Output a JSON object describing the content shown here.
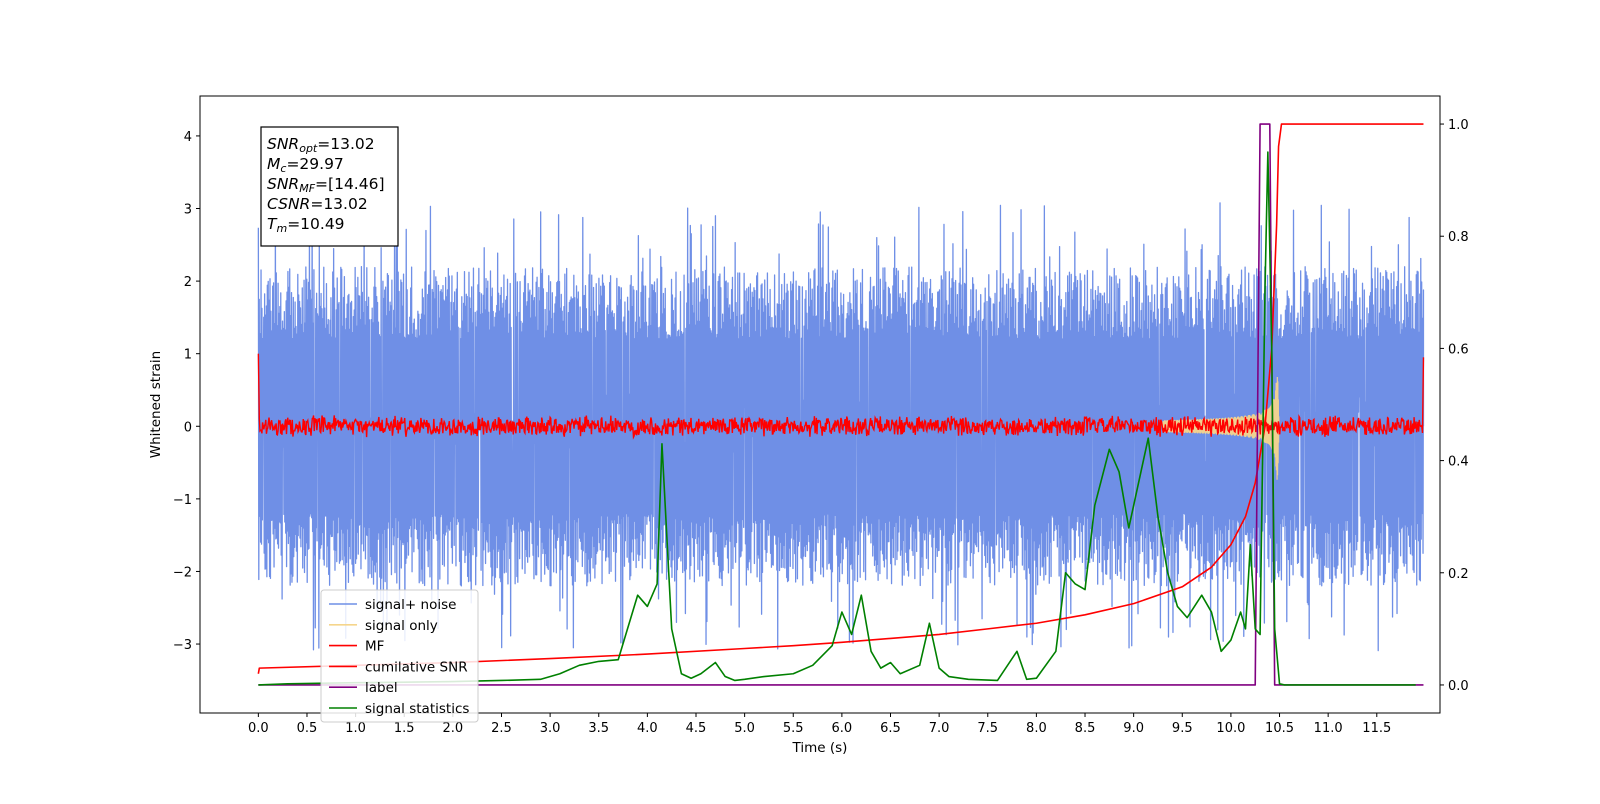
{
  "chart_data": {
    "type": "line",
    "title": "",
    "xlabel": "Time (s)",
    "ylabel": "Whitened strain",
    "ylabel_right": "",
    "xlim": [
      -0.6,
      12.15
    ],
    "ylim": [
      -3.95,
      4.55
    ],
    "ylim_right": [
      -0.05,
      1.05
    ],
    "x_ticks": [
      0.0,
      0.5,
      1.0,
      1.5,
      2.0,
      2.5,
      3.0,
      3.5,
      4.0,
      4.5,
      5.0,
      5.5,
      6.0,
      6.5,
      7.0,
      7.5,
      8.0,
      8.5,
      9.0,
      9.5,
      10.0,
      10.5,
      11.0,
      11.5
    ],
    "x_tick_labels": [
      "0.0",
      "0.5",
      "1.0",
      "1.5",
      "2.0",
      "2.5",
      "3.0",
      "3.5",
      "4.0",
      "4.5",
      "5.0",
      "5.5",
      "6.0",
      "6.5",
      "7.0",
      "7.5",
      "8.0",
      "8.5",
      "9.0",
      "9.5",
      "10.0",
      "10.5",
      "11.0",
      "11.5"
    ],
    "y_ticks": [
      -3,
      -2,
      -1,
      0,
      1,
      2,
      3,
      4
    ],
    "y_tick_labels": [
      "−3",
      "−2",
      "−1",
      "0",
      "1",
      "2",
      "3",
      "4"
    ],
    "y_ticks_right": [
      0.0,
      0.2,
      0.4,
      0.6,
      0.8,
      1.0
    ],
    "y_tick_labels_right": [
      "0.0",
      "0.2",
      "0.4",
      "0.6",
      "0.8",
      "1.0"
    ],
    "grid": false,
    "legend_position": "lower-left",
    "colors": {
      "signal_noise": "#6f8fe6",
      "signal_only": "#f5d58c",
      "mf": "#ff0000",
      "cumulative_snr": "#ff0000",
      "label": "#800080",
      "signal_statistics": "#008000"
    },
    "annotation": [
      {
        "sym": "SNR",
        "sub": "opt",
        "value": "=13.02"
      },
      {
        "sym": "M",
        "sub": "c",
        "value": "=29.97"
      },
      {
        "sym": "SNR",
        "sub": "MF",
        "value": "=[14.46]"
      },
      {
        "sym": "CSNR",
        "sub": "",
        "value": "=13.02"
      },
      {
        "sym": "T",
        "sub": "m",
        "value": "=10.49"
      }
    ],
    "series": [
      {
        "name": "signal+ noise",
        "color": "#6f8fe6",
        "axis": "left",
        "kind": "noise-band",
        "x_range": [
          0.0,
          11.98
        ],
        "amplitude": [
          -3.3,
          3.65
        ]
      },
      {
        "name": "signal only",
        "color": "#f5d58c",
        "axis": "left",
        "kind": "chirp",
        "x_range": [
          9.3,
          10.5
        ],
        "amplitude_max": 0.75
      },
      {
        "name": "MF",
        "color": "#ff0000",
        "axis": "left",
        "kind": "flat-noise",
        "x_range": [
          0.0,
          11.98
        ],
        "amplitude": 0.12,
        "edges": [
          1.0,
          0.95
        ]
      },
      {
        "name": "cumilative SNR",
        "color": "#ff0000",
        "axis": "right",
        "x": [
          0.0,
          0.01,
          1,
          2,
          3,
          4,
          5,
          5.5,
          6,
          6.5,
          7,
          7.5,
          8,
          8.5,
          9,
          9.5,
          9.8,
          10.0,
          10.15,
          10.25,
          10.35,
          10.42,
          10.47,
          10.49,
          10.52,
          11.98
        ],
        "values": [
          0.02,
          0.03,
          0.035,
          0.04,
          0.047,
          0.055,
          0.065,
          0.07,
          0.076,
          0.083,
          0.09,
          0.1,
          0.11,
          0.125,
          0.145,
          0.175,
          0.21,
          0.25,
          0.3,
          0.36,
          0.46,
          0.6,
          0.82,
          0.96,
          1.0,
          1.0
        ]
      },
      {
        "name": "label",
        "color": "#800080",
        "axis": "right",
        "x": [
          0.0,
          10.25,
          10.3,
          10.4,
          10.45,
          11.98
        ],
        "values": [
          0.0,
          0.0,
          1.0,
          1.0,
          0.0,
          0.0
        ]
      },
      {
        "name": "signal statistics",
        "color": "#008000",
        "axis": "right",
        "x": [
          0.0,
          0.3,
          1.0,
          1.5,
          2.0,
          2.5,
          2.9,
          3.1,
          3.3,
          3.5,
          3.7,
          3.9,
          4.0,
          4.1,
          4.15,
          4.25,
          4.35,
          4.45,
          4.55,
          4.7,
          4.8,
          4.9,
          5.0,
          5.2,
          5.5,
          5.7,
          5.9,
          6.0,
          6.1,
          6.2,
          6.3,
          6.4,
          6.5,
          6.6,
          6.8,
          6.9,
          7.0,
          7.1,
          7.3,
          7.6,
          7.8,
          7.9,
          8.0,
          8.2,
          8.3,
          8.4,
          8.5,
          8.6,
          8.75,
          8.85,
          8.95,
          9.05,
          9.15,
          9.25,
          9.35,
          9.45,
          9.55,
          9.7,
          9.8,
          9.9,
          10.0,
          10.1,
          10.15,
          10.2,
          10.25,
          10.3,
          10.35,
          10.38,
          10.42,
          10.45,
          10.5,
          10.55,
          11.0,
          11.5,
          11.9
        ],
        "values": [
          0.0,
          0.002,
          0.004,
          0.005,
          0.006,
          0.008,
          0.01,
          0.02,
          0.035,
          0.042,
          0.045,
          0.16,
          0.14,
          0.18,
          0.43,
          0.1,
          0.02,
          0.012,
          0.02,
          0.04,
          0.015,
          0.008,
          0.01,
          0.015,
          0.02,
          0.035,
          0.07,
          0.13,
          0.09,
          0.16,
          0.06,
          0.03,
          0.04,
          0.02,
          0.035,
          0.11,
          0.03,
          0.015,
          0.01,
          0.008,
          0.06,
          0.01,
          0.012,
          0.06,
          0.2,
          0.18,
          0.17,
          0.32,
          0.42,
          0.38,
          0.28,
          0.36,
          0.44,
          0.3,
          0.2,
          0.14,
          0.12,
          0.16,
          0.13,
          0.06,
          0.08,
          0.13,
          0.1,
          0.25,
          0.1,
          0.09,
          0.7,
          0.95,
          0.6,
          0.1,
          0.002,
          0.0,
          0.0,
          0.0,
          0.0
        ]
      }
    ]
  }
}
